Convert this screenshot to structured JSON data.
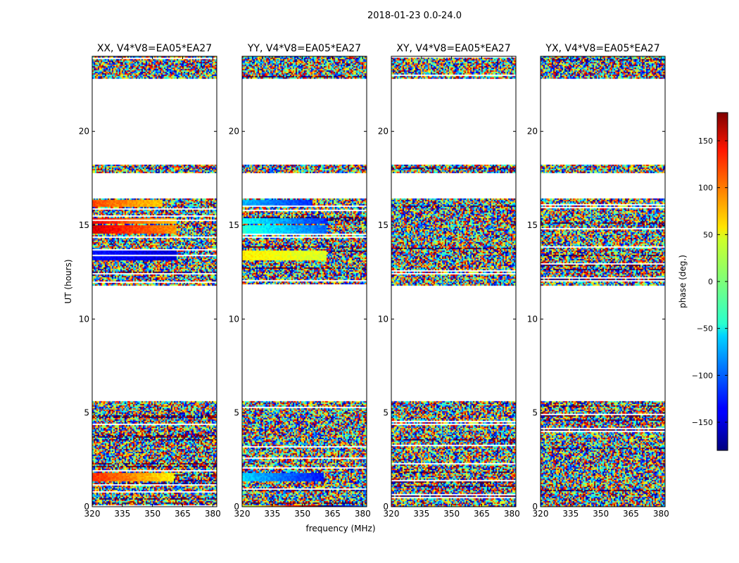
{
  "figure": {
    "suptitle": "2018-01-23 0.0-24.0"
  },
  "chart_data": {
    "type": "heatmap",
    "panels": [
      {
        "title": "XX, V4*V8=EA05*EA27",
        "polarization": "XX",
        "offset": 0
      },
      {
        "title": "YY, V4*V8=EA05*EA27",
        "polarization": "YY",
        "offset": 180
      },
      {
        "title": "XY, V4*V8=EA05*EA27",
        "polarization": "XY",
        "offset": 0,
        "noise_only": true
      },
      {
        "title": "YX, V4*V8=EA05*EA27",
        "polarization": "YX",
        "offset": 0,
        "noise_only": true
      }
    ],
    "xlabel": "frequency (MHz)",
    "ylabel": "UT (hours)",
    "xlim": [
      320,
      382
    ],
    "ylim": [
      0,
      24
    ],
    "xticks": [
      320,
      335,
      350,
      365,
      380
    ],
    "yticks": [
      0,
      5,
      10,
      15,
      20
    ],
    "data_intervals_ut_hours": [
      [
        0.0,
        5.6
      ],
      [
        11.8,
        16.4
      ],
      [
        17.8,
        18.2
      ],
      [
        22.8,
        24.0
      ]
    ],
    "coherent_bands": [
      {
        "ut": [
          15.1,
          15.4
        ],
        "phase_start": 140,
        "phase_end": 60,
        "freq_end": 362
      },
      {
        "ut": [
          14.6,
          15.0
        ],
        "phase_start": 150,
        "phase_end": 80,
        "freq_end": 362
      },
      {
        "ut": [
          13.2,
          13.7
        ],
        "phase_start": -130,
        "phase_end": -150,
        "freq_end": 362
      },
      {
        "ut": [
          16.0,
          16.35
        ],
        "phase_start": 110,
        "phase_end": 60,
        "freq_end": 355
      },
      {
        "ut": [
          1.4,
          1.8
        ],
        "phase_start": 120,
        "phase_end": 50,
        "freq_end": 360
      },
      {
        "ut": [
          0.0,
          0.15
        ],
        "phase_start": -160,
        "phase_end": 100,
        "freq_end": 382
      }
    ],
    "colorbar": {
      "label": "phase (deg.)",
      "range": [
        -180,
        180
      ],
      "ticks": [
        -150,
        -100,
        -50,
        0,
        50,
        100,
        150
      ],
      "colormap": "jet"
    }
  }
}
